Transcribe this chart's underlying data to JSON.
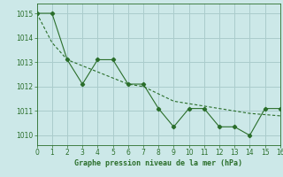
{
  "solid_x": [
    0,
    1,
    2,
    3,
    4,
    5,
    6,
    7,
    8,
    9,
    10,
    11,
    12,
    13,
    14,
    15,
    16
  ],
  "solid_y": [
    1015.0,
    1015.0,
    1013.1,
    1012.1,
    1013.1,
    1013.1,
    1012.1,
    1012.1,
    1011.1,
    1010.35,
    1011.1,
    1011.1,
    1010.35,
    1010.35,
    1010.0,
    1011.1,
    1011.1
  ],
  "dashed_x": [
    0,
    1,
    2,
    3,
    4,
    5,
    6,
    7,
    8,
    9,
    10,
    11,
    12,
    13,
    14,
    15,
    16
  ],
  "dashed_y": [
    1015.0,
    1013.8,
    1013.1,
    1012.85,
    1012.6,
    1012.35,
    1012.1,
    1012.0,
    1011.7,
    1011.4,
    1011.3,
    1011.2,
    1011.1,
    1011.0,
    1010.9,
    1010.85,
    1010.8
  ],
  "line_color": "#2a6e2a",
  "bg_color": "#cce8e8",
  "grid_color": "#aacccc",
  "xlabel": "Graphe pression niveau de la mer (hPa)",
  "xlim": [
    0,
    16
  ],
  "ylim": [
    1009.6,
    1015.4
  ],
  "yticks": [
    1010,
    1011,
    1012,
    1013,
    1014,
    1015
  ],
  "xticks": [
    0,
    1,
    2,
    3,
    4,
    5,
    6,
    7,
    8,
    9,
    10,
    11,
    12,
    13,
    14,
    15,
    16
  ]
}
